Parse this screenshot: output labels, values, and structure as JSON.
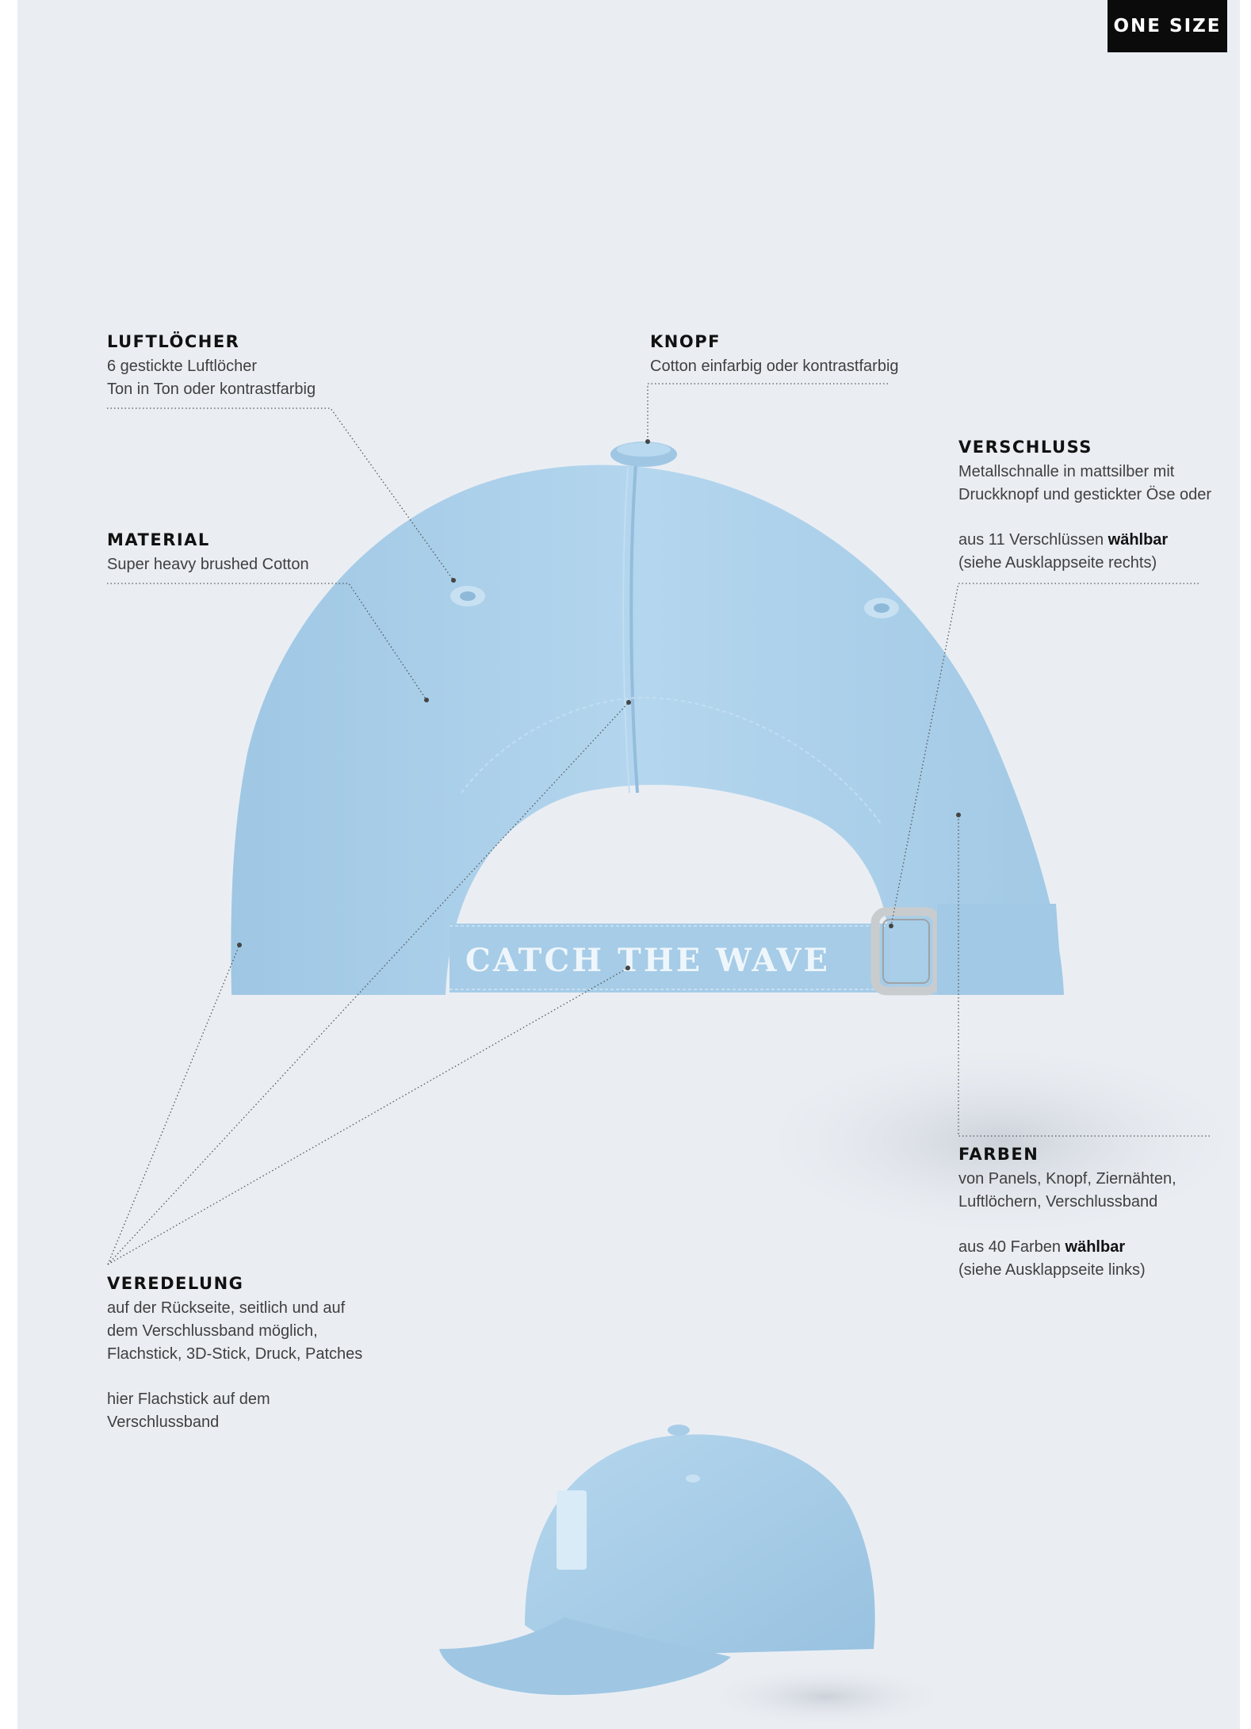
{
  "badge": "ONE SIZE",
  "annotations": {
    "luftloecher": {
      "heading": "LUFTLÖCHER",
      "lines": [
        "6 gestickte Luftlöcher",
        "Ton in Ton oder kontrastfarbig"
      ]
    },
    "knopf": {
      "heading": "KNOPF",
      "lines": [
        "Cotton einfarbig oder kontrastfarbig"
      ]
    },
    "verschluss": {
      "heading": "VERSCHLUSS",
      "lines": [
        "Metallschnalle in mattsilber mit",
        "Druckknopf und gestickter Öse oder"
      ],
      "choice_prefix": "aus 11 Verschlüssen ",
      "choice_bold": "wählbar",
      "choice_note": "(siehe Ausklappseite rechts)"
    },
    "material": {
      "heading": "MATERIAL",
      "lines": [
        "Super heavy brushed Cotton"
      ]
    },
    "farben": {
      "heading": "FARBEN",
      "lines": [
        "von Panels, Knopf, Ziernähten,",
        "Luftlöchern, Verschlussband"
      ],
      "choice_prefix": "aus 40 Farben ",
      "choice_bold": "wählbar",
      "choice_note": "(siehe Ausklappseite links)"
    },
    "veredelung": {
      "heading": "VEREDELUNG",
      "lines": [
        "auf der Rückseite, seitlich und auf",
        "dem Verschlussband möglich,",
        "Flachstick, 3D-Stick, Druck, Patches"
      ],
      "extra_lines": [
        "hier Flachstick auf dem",
        "Verschlussband"
      ]
    }
  },
  "cap": {
    "strap_text": "CATCH THE WAVE",
    "main_color": "#a9cfe9",
    "shade_color": "#8fbcdc",
    "light_color": "#bfdcf0",
    "buckle_color": "#c9ccce"
  }
}
